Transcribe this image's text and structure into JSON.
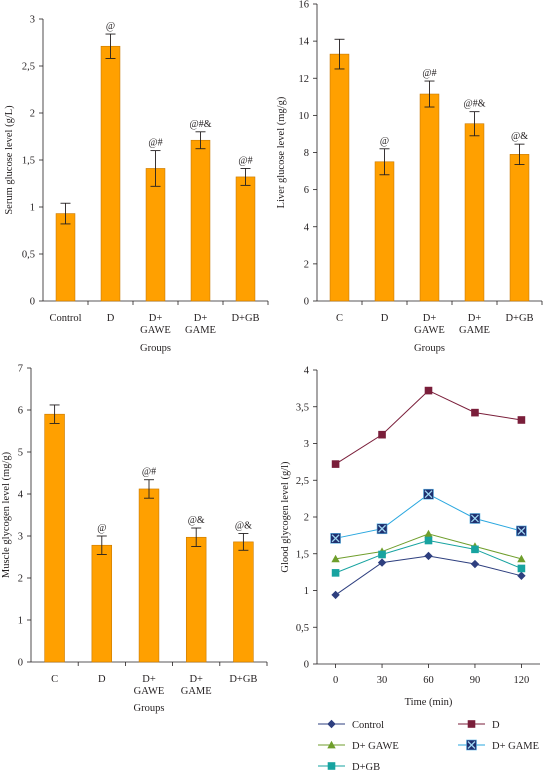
{
  "colors": {
    "bar_fill": "#ffa000",
    "bar_stroke": "#c87800",
    "axis": "#231f20",
    "control": "#2e3f7f",
    "d": "#7a1e3a",
    "gawe": "#6f9e2c",
    "game": "#2aa7df",
    "gb": "#17a3a0"
  },
  "chart_data": [
    {
      "id": "serum",
      "type": "bar",
      "title": "",
      "categories": [
        [
          "Control"
        ],
        [
          "D"
        ],
        [
          "D+",
          "GAWE"
        ],
        [
          "D+",
          "GAME"
        ],
        [
          "D+GB"
        ]
      ],
      "values": [
        0.93,
        2.71,
        1.41,
        1.71,
        1.32
      ],
      "errors": [
        0.11,
        0.13,
        0.19,
        0.09,
        0.09
      ],
      "annotations": [
        "",
        "@",
        "@#",
        "@#&",
        "@#"
      ],
      "xlabel": "Groups",
      "ylabel": "Serum glucose level (g/L)",
      "ylim": [
        0,
        3
      ],
      "yticks": [
        0,
        0.5,
        1,
        1.5,
        2,
        2.5,
        3
      ],
      "ytick_labels": [
        "0",
        "0,5",
        "1",
        "1,5",
        "2",
        "2,5",
        "3"
      ],
      "grid": false
    },
    {
      "id": "liver",
      "type": "bar",
      "title": "",
      "categories": [
        [
          "C"
        ],
        [
          "D"
        ],
        [
          "D+",
          "GAWE"
        ],
        [
          "D+",
          "GAME"
        ],
        [
          "D+GB"
        ]
      ],
      "values": [
        13.3,
        7.5,
        11.15,
        9.55,
        7.9
      ],
      "errors": [
        0.8,
        0.7,
        0.7,
        0.65,
        0.55
      ],
      "annotations": [
        "",
        "@",
        "@#",
        "@#&",
        "@&"
      ],
      "xlabel": "Groups",
      "ylabel": "Liver glucose level (mg/g)",
      "ylim": [
        0,
        16
      ],
      "yticks": [
        0,
        2,
        4,
        6,
        8,
        10,
        12,
        14,
        16
      ],
      "ytick_labels": [
        "0",
        "2",
        "4",
        "6",
        "8",
        "10",
        "12",
        "14",
        "16"
      ],
      "grid": false
    },
    {
      "id": "muscle",
      "type": "bar",
      "title": "",
      "categories": [
        [
          "C"
        ],
        [
          "D"
        ],
        [
          "D+",
          "GAWE"
        ],
        [
          "D+",
          "GAME"
        ],
        [
          "D+GB"
        ]
      ],
      "values": [
        5.9,
        2.78,
        4.12,
        2.97,
        2.86
      ],
      "errors": [
        0.22,
        0.22,
        0.22,
        0.22,
        0.2
      ],
      "annotations": [
        "",
        "@",
        "@#",
        "@&",
        "@&"
      ],
      "xlabel": "Groups",
      "ylabel": "Muscle glycogen level (mg/g)",
      "ylim": [
        0,
        7
      ],
      "yticks": [
        0,
        1,
        2,
        3,
        4,
        5,
        6,
        7
      ],
      "ytick_labels": [
        "0",
        "1",
        "2",
        "3",
        "4",
        "5",
        "6",
        "7"
      ],
      "grid": false
    },
    {
      "id": "ogtt",
      "type": "line",
      "title": "",
      "x": [
        0,
        30,
        60,
        90,
        120
      ],
      "xtick_labels": [
        "0",
        "30",
        "60",
        "90",
        "120"
      ],
      "xlim": [
        -12,
        132
      ],
      "xlabel": "Time (min)",
      "ylabel": "Glood glycogen level (g/l)",
      "ylim": [
        0,
        4
      ],
      "yticks": [
        0,
        0.5,
        1,
        1.5,
        2,
        2.5,
        3,
        3.5,
        4
      ],
      "ytick_labels": [
        "0",
        "0,5",
        "1",
        "1,5",
        "2",
        "2,5",
        "3",
        "3,5",
        "4"
      ],
      "grid": false,
      "legend_position": "bottom",
      "series": [
        {
          "name": "Control",
          "marker": "diamond",
          "color_key": "control",
          "values": [
            0.94,
            1.38,
            1.47,
            1.36,
            1.2
          ]
        },
        {
          "name": "D",
          "marker": "square",
          "color_key": "d",
          "values": [
            2.72,
            3.12,
            3.72,
            3.42,
            3.32
          ]
        },
        {
          "name": "D+ GAWE",
          "marker": "triangle",
          "color_key": "gawe",
          "values": [
            1.43,
            1.53,
            1.77,
            1.6,
            1.43
          ]
        },
        {
          "name": "D+ GAME",
          "marker": "xsquare",
          "color_key": "game",
          "values": [
            1.71,
            1.84,
            2.31,
            1.98,
            1.81
          ]
        },
        {
          "name": "D+GB",
          "marker": "square",
          "color_key": "gb",
          "values": [
            1.24,
            1.49,
            1.68,
            1.56,
            1.3
          ]
        }
      ]
    }
  ]
}
